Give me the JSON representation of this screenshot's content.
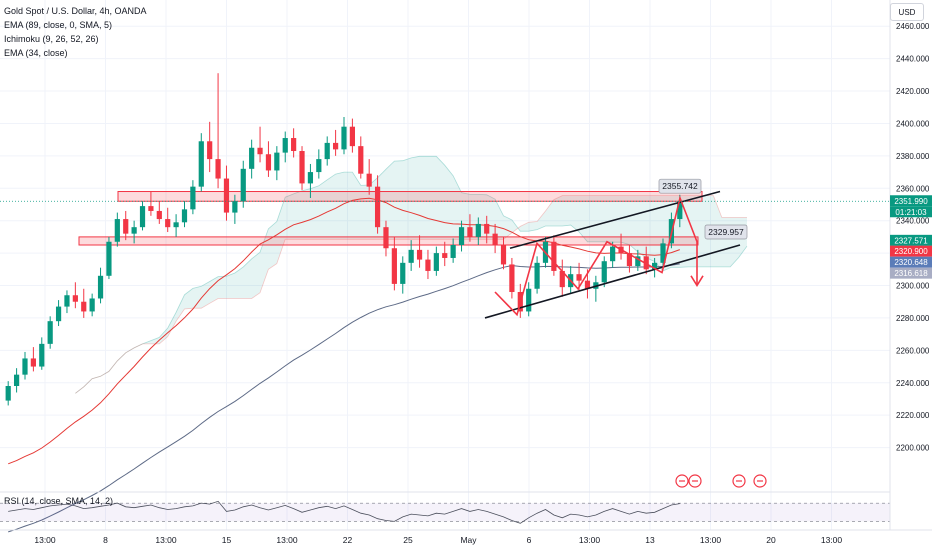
{
  "legend": [
    "Gold Spot / U.S. Dollar, 4h, OANDA",
    "EMA (89, close, 0, SMA, 5)",
    "Ichimoku (9, 26, 52, 26)",
    "EMA (34, close)"
  ],
  "rsi_label": "RSI (14, close, SMA, 14, 2)",
  "currency": "USD",
  "chart_data": {
    "type": "candlestick",
    "y_ticks": [
      2200,
      2220,
      2240,
      2260,
      2280,
      2300,
      2320,
      2340,
      2360,
      2380,
      2400,
      2420,
      2440,
      2460
    ],
    "y_tick_labels": [
      "2200.000",
      "2220.000",
      "2240.000",
      "2260.000",
      "2280.000",
      "2300.000",
      "2320.000",
      "2340.000",
      "2360.000",
      "2380.000",
      "2400.000",
      "2420.000",
      "2440.000",
      "2460.000"
    ],
    "ylim": [
      2180,
      2470
    ],
    "x_ticks": [
      "13:00",
      "8",
      "13:00",
      "15",
      "13:00",
      "22",
      "25",
      "May",
      "6",
      "13:00",
      "13",
      "13:00",
      "20",
      "13:00"
    ],
    "price_tags": [
      {
        "value": 2351.99,
        "label": "2351.990",
        "color": "#089981"
      },
      {
        "value": 2351.99,
        "label": "01:21:03",
        "color": "#089981"
      },
      {
        "value": 2327.571,
        "label": "2327.571",
        "color": "#089981"
      },
      {
        "value": 2320.9,
        "label": "2320.900",
        "color": "#f23645"
      },
      {
        "value": 2320.648,
        "label": "2320.648",
        "color": "#5b7cb8"
      },
      {
        "value": 2316.618,
        "label": "2316.618",
        "color": "#a8adc4"
      }
    ],
    "annotations": [
      {
        "text": "2355.742",
        "value": 2355.742
      },
      {
        "text": "2329.957",
        "value": 2329.957
      }
    ],
    "zones": [
      {
        "top": 2358,
        "bottom": 2352
      },
      {
        "top": 2330,
        "bottom": 2325
      }
    ],
    "candles": [
      [
        2229,
        2241,
        2226,
        2238
      ],
      [
        2238,
        2249,
        2234,
        2245
      ],
      [
        2245,
        2259,
        2242,
        2255
      ],
      [
        2255,
        2262,
        2247,
        2250
      ],
      [
        2250,
        2268,
        2248,
        2264
      ],
      [
        2264,
        2281,
        2261,
        2278
      ],
      [
        2278,
        2291,
        2275,
        2287
      ],
      [
        2287,
        2297,
        2283,
        2294
      ],
      [
        2294,
        2302,
        2286,
        2290
      ],
      [
        2290,
        2298,
        2280,
        2284
      ],
      [
        2284,
        2295,
        2281,
        2292
      ],
      [
        2292,
        2311,
        2289,
        2306
      ],
      [
        2306,
        2330,
        2304,
        2327
      ],
      [
        2327,
        2345,
        2324,
        2341
      ],
      [
        2341,
        2346,
        2328,
        2332
      ],
      [
        2332,
        2340,
        2326,
        2336
      ],
      [
        2336,
        2352,
        2334,
        2349
      ],
      [
        2349,
        2358,
        2343,
        2346
      ],
      [
        2346,
        2352,
        2338,
        2341
      ],
      [
        2341,
        2348,
        2333,
        2336
      ],
      [
        2336,
        2344,
        2330,
        2339
      ],
      [
        2339,
        2352,
        2336,
        2347
      ],
      [
        2347,
        2365,
        2344,
        2361
      ],
      [
        2361,
        2394,
        2358,
        2389
      ],
      [
        2389,
        2401,
        2370,
        2378
      ],
      [
        2378,
        2431,
        2360,
        2366
      ],
      [
        2366,
        2374,
        2340,
        2345
      ],
      [
        2345,
        2356,
        2338,
        2352
      ],
      [
        2352,
        2377,
        2348,
        2372
      ],
      [
        2372,
        2390,
        2366,
        2385
      ],
      [
        2385,
        2398,
        2376,
        2381
      ],
      [
        2381,
        2389,
        2367,
        2371
      ],
      [
        2371,
        2386,
        2365,
        2382
      ],
      [
        2382,
        2395,
        2376,
        2391
      ],
      [
        2391,
        2397,
        2379,
        2383
      ],
      [
        2383,
        2386,
        2359,
        2363
      ],
      [
        2363,
        2375,
        2354,
        2370
      ],
      [
        2370,
        2384,
        2366,
        2378
      ],
      [
        2378,
        2392,
        2374,
        2388
      ],
      [
        2388,
        2396,
        2380,
        2384
      ],
      [
        2384,
        2404,
        2381,
        2398
      ],
      [
        2398,
        2403,
        2382,
        2386
      ],
      [
        2386,
        2392,
        2366,
        2369
      ],
      [
        2369,
        2378,
        2356,
        2361
      ],
      [
        2361,
        2368,
        2332,
        2336
      ],
      [
        2336,
        2340,
        2318,
        2323
      ],
      [
        2323,
        2330,
        2297,
        2301
      ],
      [
        2301,
        2318,
        2295,
        2314
      ],
      [
        2314,
        2328,
        2309,
        2322
      ],
      [
        2322,
        2331,
        2311,
        2316
      ],
      [
        2316,
        2322,
        2304,
        2309
      ],
      [
        2309,
        2324,
        2306,
        2320
      ],
      [
        2320,
        2327,
        2312,
        2317
      ],
      [
        2317,
        2329,
        2314,
        2325
      ],
      [
        2325,
        2340,
        2321,
        2336
      ],
      [
        2336,
        2344,
        2327,
        2330
      ],
      [
        2330,
        2342,
        2325,
        2338
      ],
      [
        2338,
        2343,
        2326,
        2332
      ],
      [
        2332,
        2338,
        2320,
        2325
      ],
      [
        2325,
        2330,
        2310,
        2313
      ],
      [
        2313,
        2317,
        2292,
        2296
      ],
      [
        2296,
        2301,
        2280,
        2284
      ],
      [
        2284,
        2302,
        2281,
        2298
      ],
      [
        2298,
        2318,
        2295,
        2314
      ],
      [
        2314,
        2330,
        2311,
        2327
      ],
      [
        2327,
        2331,
        2306,
        2309
      ],
      [
        2309,
        2316,
        2293,
        2299
      ],
      [
        2299,
        2312,
        2295,
        2307
      ],
      [
        2307,
        2314,
        2297,
        2303
      ],
      [
        2303,
        2310,
        2292,
        2298
      ],
      [
        2298,
        2306,
        2290,
        2302
      ],
      [
        2302,
        2318,
        2299,
        2315
      ],
      [
        2315,
        2327,
        2311,
        2324
      ],
      [
        2324,
        2332,
        2316,
        2320
      ],
      [
        2320,
        2325,
        2308,
        2312
      ],
      [
        2312,
        2322,
        2309,
        2318
      ],
      [
        2318,
        2324,
        2307,
        2310
      ],
      [
        2310,
        2317,
        2305,
        2314
      ],
      [
        2314,
        2329,
        2312,
        2326
      ],
      [
        2326,
        2345,
        2323,
        2341
      ],
      [
        2341,
        2356,
        2336,
        2352
      ]
    ],
    "rsi_ticks": [
      69.34,
      54.68,
      53.89
    ],
    "rsi_values": [
      52,
      55,
      58,
      56,
      60,
      64,
      66,
      68,
      64,
      58,
      60,
      63,
      66,
      70,
      62,
      60,
      63,
      66,
      60,
      56,
      58,
      62,
      64,
      70,
      68,
      74,
      52,
      55,
      62,
      66,
      60,
      55,
      60,
      65,
      58,
      50,
      55,
      60,
      63,
      58,
      64,
      56,
      48,
      44,
      36,
      32,
      30,
      40,
      46,
      44,
      42,
      48,
      46,
      52,
      58,
      52,
      56,
      52,
      46,
      40,
      32,
      26,
      38,
      48,
      56,
      44,
      38,
      46,
      44,
      40,
      44,
      52,
      58,
      52,
      46,
      52,
      48,
      50,
      58,
      66,
      69
    ]
  }
}
